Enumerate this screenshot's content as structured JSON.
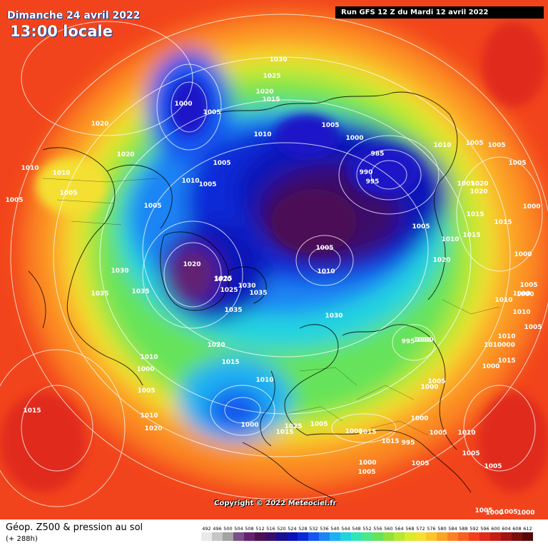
{
  "header": {
    "date": "Dimanche 24 avril 2022",
    "time": "13:00 locale",
    "run": "Run GFS 12 Z du Mardi 12 avril 2022"
  },
  "copyright": "Copyright © 2022 Meteociel.fr",
  "footer": {
    "title": "Géop. Z500 & pression au sol",
    "subtitle": "(+ 288h)"
  },
  "scale_values": [
    "492",
    "496",
    "500",
    "504",
    "508",
    "512",
    "516",
    "520",
    "524",
    "528",
    "532",
    "536",
    "540",
    "544",
    "548",
    "552",
    "556",
    "560",
    "564",
    "568",
    "572",
    "576",
    "580",
    "584",
    "588",
    "592",
    "596",
    "600",
    "604",
    "608",
    "612"
  ],
  "scale_colors": [
    "#e9e9e9",
    "#c6c6c6",
    "#a3a3a3",
    "#7a4f8a",
    "#63236f",
    "#4c1155",
    "#3a0f6b",
    "#1a0f8f",
    "#0a12b8",
    "#0a2ad8",
    "#1456ef",
    "#1a84f5",
    "#1cb0f2",
    "#20d3df",
    "#30e6b8",
    "#4be78a",
    "#66e35a",
    "#8ee33a",
    "#b6e830",
    "#dcea2c",
    "#f4e030",
    "#fcc52c",
    "#fca426",
    "#fb8224",
    "#f8601f",
    "#f2401c",
    "#e02a1a",
    "#c41e16",
    "#a01512",
    "#7c0e0e",
    "#560808"
  ],
  "pressure_labels": [
    {
      "text": "1030"
    },
    {
      "text": "1025"
    },
    {
      "text": "1020"
    },
    {
      "text": "1015"
    },
    {
      "text": "1000"
    },
    {
      "text": "1005"
    },
    {
      "text": "1010"
    },
    {
      "text": "1020"
    },
    {
      "text": "1020"
    },
    {
      "text": "1010"
    },
    {
      "text": "1010"
    },
    {
      "text": "1005"
    },
    {
      "text": "1005"
    },
    {
      "text": "1005"
    },
    {
      "text": "1010"
    },
    {
      "text": "1005"
    },
    {
      "text": "1005"
    },
    {
      "text": "1005"
    },
    {
      "text": "985"
    },
    {
      "text": "990"
    },
    {
      "text": "995"
    },
    {
      "text": "1000"
    },
    {
      "text": "1005"
    },
    {
      "text": "1010"
    },
    {
      "text": "1005"
    },
    {
      "text": "1005"
    },
    {
      "text": "1005"
    },
    {
      "text": "1020"
    },
    {
      "text": "1020"
    },
    {
      "text": "1000"
    },
    {
      "text": "1015"
    },
    {
      "text": "1015"
    },
    {
      "text": "1005"
    },
    {
      "text": "1015"
    },
    {
      "text": "1030"
    },
    {
      "text": "1020"
    },
    {
      "text": "1025"
    },
    {
      "text": "1030"
    },
    {
      "text": "1035"
    },
    {
      "text": "1035"
    },
    {
      "text": "1035"
    },
    {
      "text": "1035"
    },
    {
      "text": "1020"
    },
    {
      "text": "1020"
    },
    {
      "text": "1025"
    },
    {
      "text": "1005"
    },
    {
      "text": "1010"
    },
    {
      "text": "1010"
    },
    {
      "text": "1000"
    },
    {
      "text": "1030"
    },
    {
      "text": "1020"
    },
    {
      "text": "1000"
    },
    {
      "text": "995"
    },
    {
      "text": "1000"
    },
    {
      "text": "1010"
    },
    {
      "text": "1000"
    },
    {
      "text": "1005"
    },
    {
      "text": "1015"
    },
    {
      "text": "1010"
    },
    {
      "text": "1000"
    },
    {
      "text": "1015"
    },
    {
      "text": "1010"
    },
    {
      "text": "1020"
    },
    {
      "text": "1015"
    },
    {
      "text": "1025"
    },
    {
      "text": "1005"
    },
    {
      "text": "1000"
    },
    {
      "text": "1015"
    },
    {
      "text": "1015"
    },
    {
      "text": "1000"
    },
    {
      "text": "995"
    },
    {
      "text": "1000"
    },
    {
      "text": "1005"
    },
    {
      "text": "1005"
    },
    {
      "text": "1000"
    },
    {
      "text": "1005"
    },
    {
      "text": "1005"
    },
    {
      "text": "1010"
    },
    {
      "text": "1005"
    },
    {
      "text": "1015"
    },
    {
      "text": "1010"
    },
    {
      "text": "1005"
    },
    {
      "text": "1000"
    },
    {
      "text": "1005"
    },
    {
      "text": "1010"
    },
    {
      "text": "1010"
    },
    {
      "text": "1000"
    },
    {
      "text": "1005"
    },
    {
      "text": "1010000"
    },
    {
      "text": "1000"
    },
    {
      "text": "1005"
    },
    {
      "text": "1000"
    },
    {
      "text": "1005"
    },
    {
      "text": "1000"
    }
  ]
}
